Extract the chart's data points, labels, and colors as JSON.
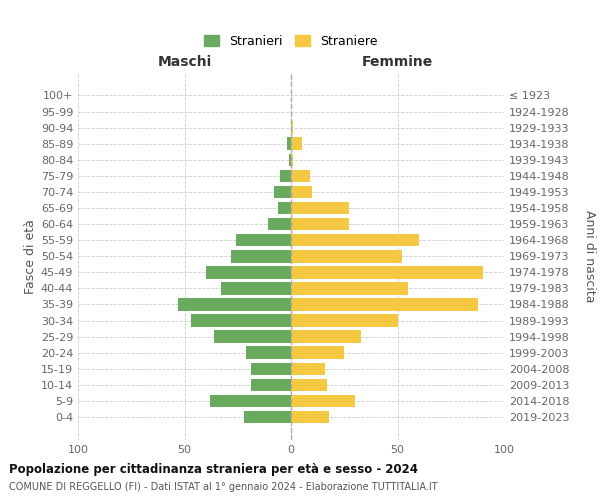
{
  "age_groups": [
    "0-4",
    "5-9",
    "10-14",
    "15-19",
    "20-24",
    "25-29",
    "30-34",
    "35-39",
    "40-44",
    "45-49",
    "50-54",
    "55-59",
    "60-64",
    "65-69",
    "70-74",
    "75-79",
    "80-84",
    "85-89",
    "90-94",
    "95-99",
    "100+"
  ],
  "birth_years": [
    "2019-2023",
    "2014-2018",
    "2009-2013",
    "2004-2008",
    "1999-2003",
    "1994-1998",
    "1989-1993",
    "1984-1988",
    "1979-1983",
    "1974-1978",
    "1969-1973",
    "1964-1968",
    "1959-1963",
    "1954-1958",
    "1949-1953",
    "1944-1948",
    "1939-1943",
    "1934-1938",
    "1929-1933",
    "1924-1928",
    "≤ 1923"
  ],
  "maschi": [
    22,
    38,
    19,
    19,
    21,
    36,
    47,
    53,
    33,
    40,
    28,
    26,
    11,
    6,
    8,
    5,
    1,
    2,
    0,
    0,
    0
  ],
  "femmine": [
    18,
    30,
    17,
    16,
    25,
    33,
    50,
    88,
    55,
    90,
    52,
    60,
    27,
    27,
    10,
    9,
    1,
    5,
    1,
    0,
    0
  ],
  "maschi_color": "#6aaa5e",
  "femmine_color": "#f5c842",
  "title": "Popolazione per cittadinanza straniera per età e sesso - 2024",
  "subtitle": "COMUNE DI REGGELLO (FI) - Dati ISTAT al 1° gennaio 2024 - Elaborazione TUTTITALIA.IT",
  "header_left": "Maschi",
  "header_right": "Femmine",
  "ylabel_left": "Fasce di età",
  "ylabel_right": "Anni di nascita",
  "legend_maschi": "Stranieri",
  "legend_femmine": "Straniere",
  "xlim": 100
}
